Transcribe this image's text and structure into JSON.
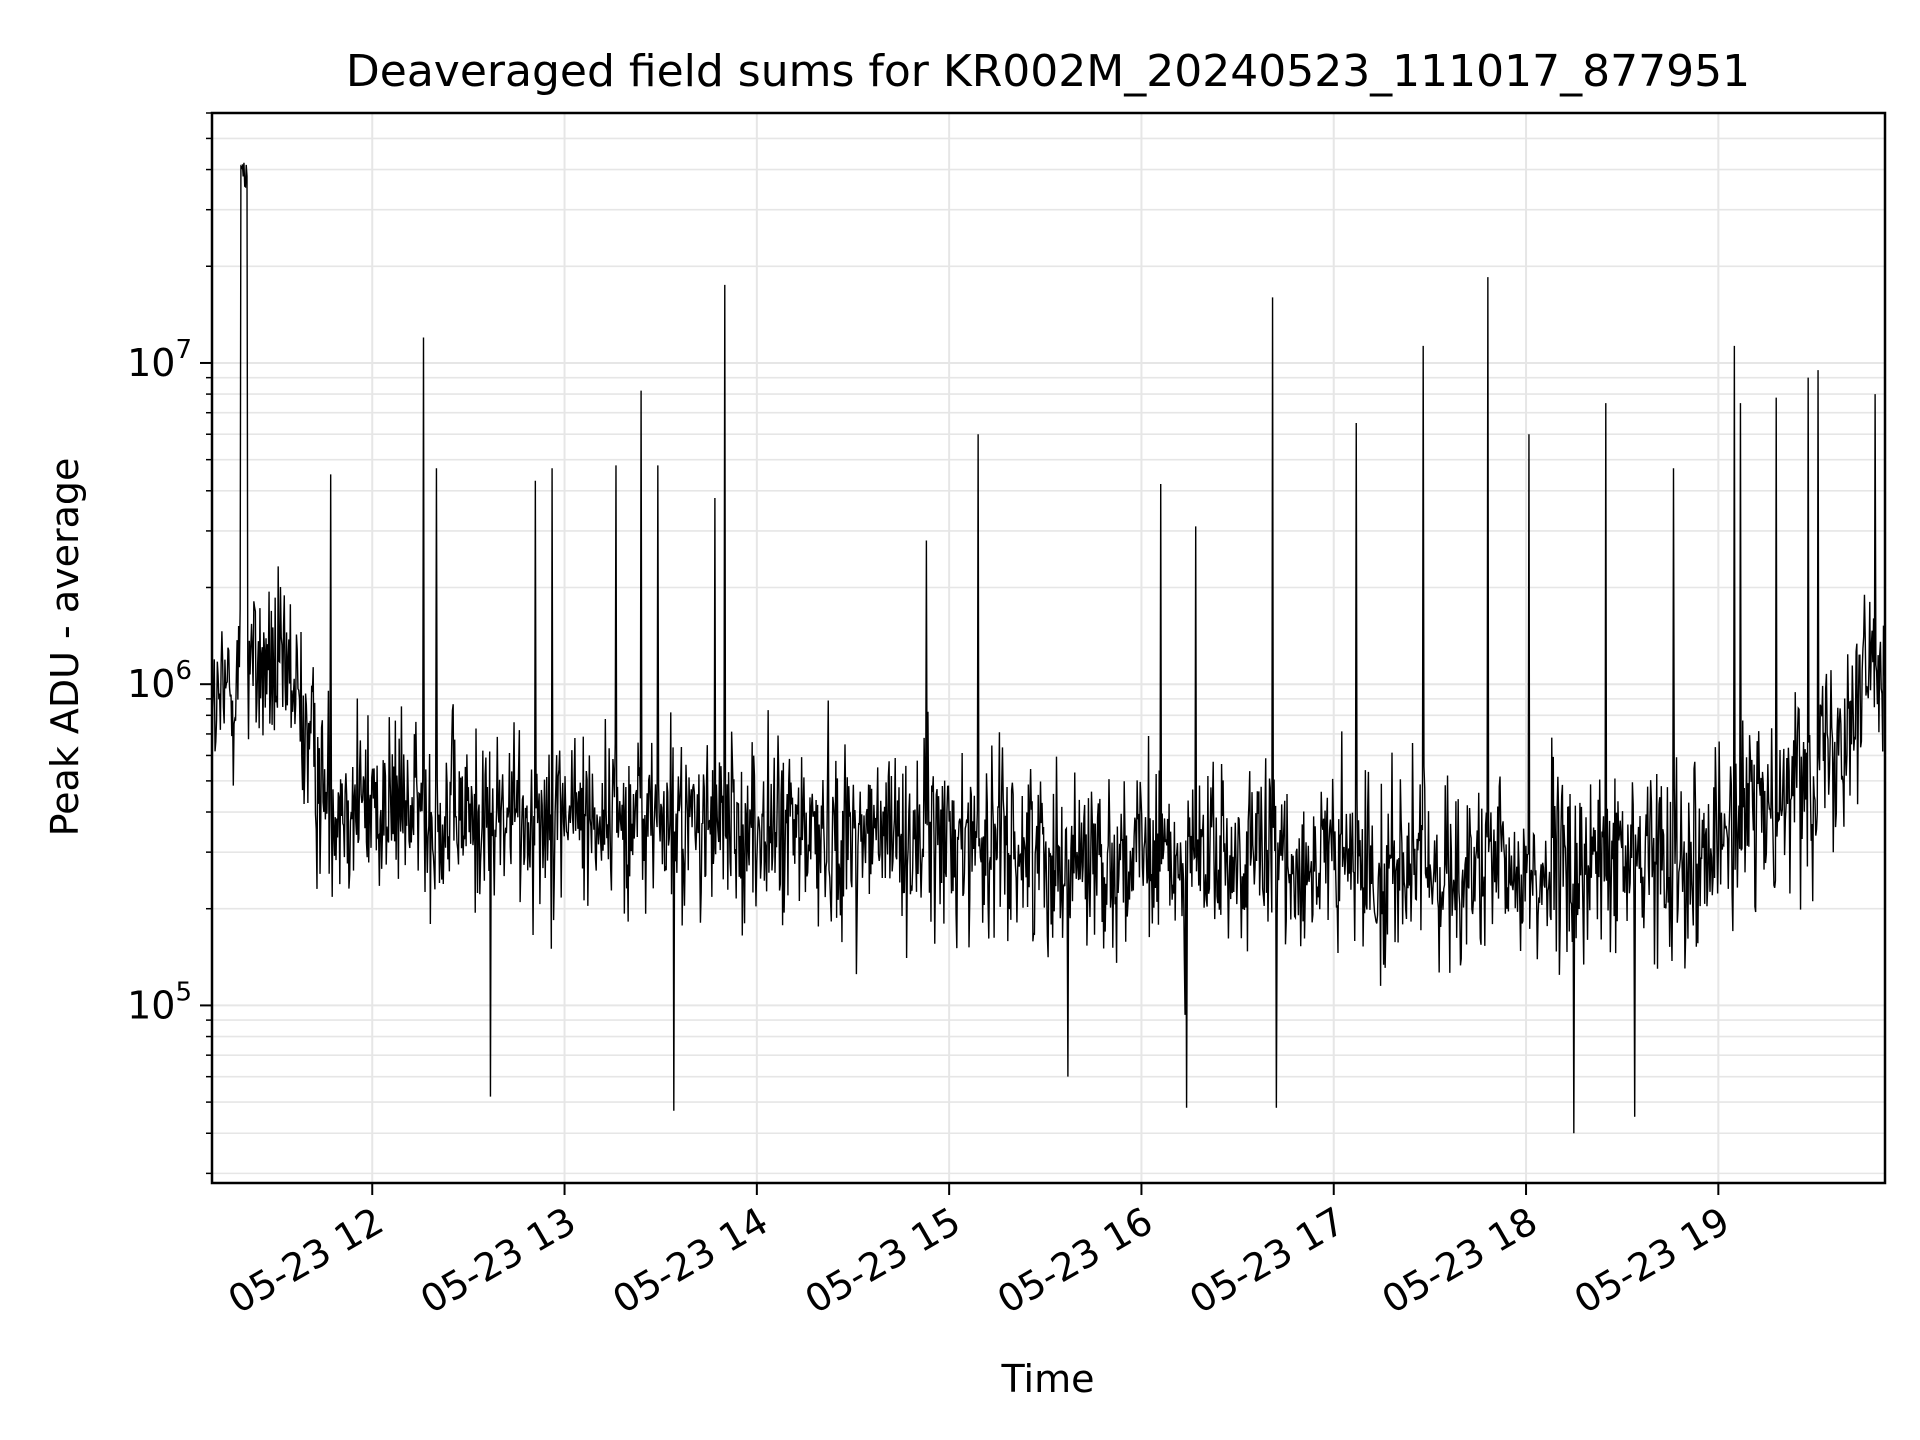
{
  "chart_data": {
    "type": "line",
    "title": "Deaveraged field sums for KR002M_20240523_111017_877951",
    "xlabel": "Time",
    "ylabel": "Peak ADU - average",
    "yscale": "log",
    "ylim": [
      28000,
      60000000
    ],
    "xlim": [
      "2024-05-23T11:10",
      "2024-05-23T19:52"
    ],
    "x_ticks": [
      {
        "t": "2024-05-23T12:00",
        "label": "05-23 12"
      },
      {
        "t": "2024-05-23T13:00",
        "label": "05-23 13"
      },
      {
        "t": "2024-05-23T14:00",
        "label": "05-23 14"
      },
      {
        "t": "2024-05-23T15:00",
        "label": "05-23 15"
      },
      {
        "t": "2024-05-23T16:00",
        "label": "05-23 16"
      },
      {
        "t": "2024-05-23T17:00",
        "label": "05-23 17"
      },
      {
        "t": "2024-05-23T18:00",
        "label": "05-23 18"
      },
      {
        "t": "2024-05-23T19:00",
        "label": "05-23 19"
      }
    ],
    "y_ticks": [
      {
        "value": 100000,
        "base": "10",
        "exp": "5"
      },
      {
        "value": 1000000,
        "base": "10",
        "exp": "6"
      },
      {
        "value": 10000000,
        "base": "10",
        "exp": "7"
      }
    ],
    "grid": true,
    "line_color": "#000000",
    "grid_color": "#e6e6e6",
    "baseline": [
      {
        "t": "2024-05-23T11:10",
        "v": 750000
      },
      {
        "t": "2024-05-23T11:20",
        "v": 1200000
      },
      {
        "t": "2024-05-23T11:35",
        "v": 1000000
      },
      {
        "t": "2024-05-23T11:45",
        "v": 450000
      },
      {
        "t": "2024-05-23T12:30",
        "v": 380000
      },
      {
        "t": "2024-05-23T13:00",
        "v": 400000
      },
      {
        "t": "2024-05-23T14:00",
        "v": 350000
      },
      {
        "t": "2024-05-23T15:00",
        "v": 330000
      },
      {
        "t": "2024-05-23T16:00",
        "v": 280000
      },
      {
        "t": "2024-05-23T17:00",
        "v": 280000
      },
      {
        "t": "2024-05-23T18:00",
        "v": 250000
      },
      {
        "t": "2024-05-23T19:00",
        "v": 320000
      },
      {
        "t": "2024-05-23T19:30",
        "v": 550000
      },
      {
        "t": "2024-05-23T19:52",
        "v": 1300000
      }
    ],
    "peaks": [
      {
        "t": "2024-05-23T11:20",
        "v": 42000000
      },
      {
        "t": "2024-05-23T11:47",
        "v": 4500000
      },
      {
        "t": "2024-05-23T12:16",
        "v": 12000000
      },
      {
        "t": "2024-05-23T12:20",
        "v": 4700000
      },
      {
        "t": "2024-05-23T12:51",
        "v": 4300000
      },
      {
        "t": "2024-05-23T12:56",
        "v": 4700000
      },
      {
        "t": "2024-05-23T13:16",
        "v": 4800000
      },
      {
        "t": "2024-05-23T13:24",
        "v": 8200000
      },
      {
        "t": "2024-05-23T13:29",
        "v": 4800000
      },
      {
        "t": "2024-05-23T13:47",
        "v": 3800000
      },
      {
        "t": "2024-05-23T13:50",
        "v": 17500000
      },
      {
        "t": "2024-05-23T14:53",
        "v": 2800000
      },
      {
        "t": "2024-05-23T15:09",
        "v": 6000000
      },
      {
        "t": "2024-05-23T16:06",
        "v": 4200000
      },
      {
        "t": "2024-05-23T16:17",
        "v": 3100000
      },
      {
        "t": "2024-05-23T16:41",
        "v": 16000000
      },
      {
        "t": "2024-05-23T17:07",
        "v": 6500000
      },
      {
        "t": "2024-05-23T17:28",
        "v": 11300000
      },
      {
        "t": "2024-05-23T17:48",
        "v": 18500000
      },
      {
        "t": "2024-05-23T18:01",
        "v": 6000000
      },
      {
        "t": "2024-05-23T18:25",
        "v": 7500000
      },
      {
        "t": "2024-05-23T18:46",
        "v": 4700000
      },
      {
        "t": "2024-05-23T19:05",
        "v": 11300000
      },
      {
        "t": "2024-05-23T19:07",
        "v": 7500000
      },
      {
        "t": "2024-05-23T19:18",
        "v": 7800000
      },
      {
        "t": "2024-05-23T19:28",
        "v": 9000000
      },
      {
        "t": "2024-05-23T19:31",
        "v": 9500000
      },
      {
        "t": "2024-05-23T19:49",
        "v": 8000000
      }
    ],
    "troughs": [
      {
        "t": "2024-05-23T12:37",
        "v": 52000
      },
      {
        "t": "2024-05-23T13:34",
        "v": 47000
      },
      {
        "t": "2024-05-23T15:37",
        "v": 60000
      },
      {
        "t": "2024-05-23T16:14",
        "v": 48000
      },
      {
        "t": "2024-05-23T16:42",
        "v": 48000
      },
      {
        "t": "2024-05-23T18:15",
        "v": 40000
      },
      {
        "t": "2024-05-23T18:34",
        "v": 45000
      }
    ]
  }
}
